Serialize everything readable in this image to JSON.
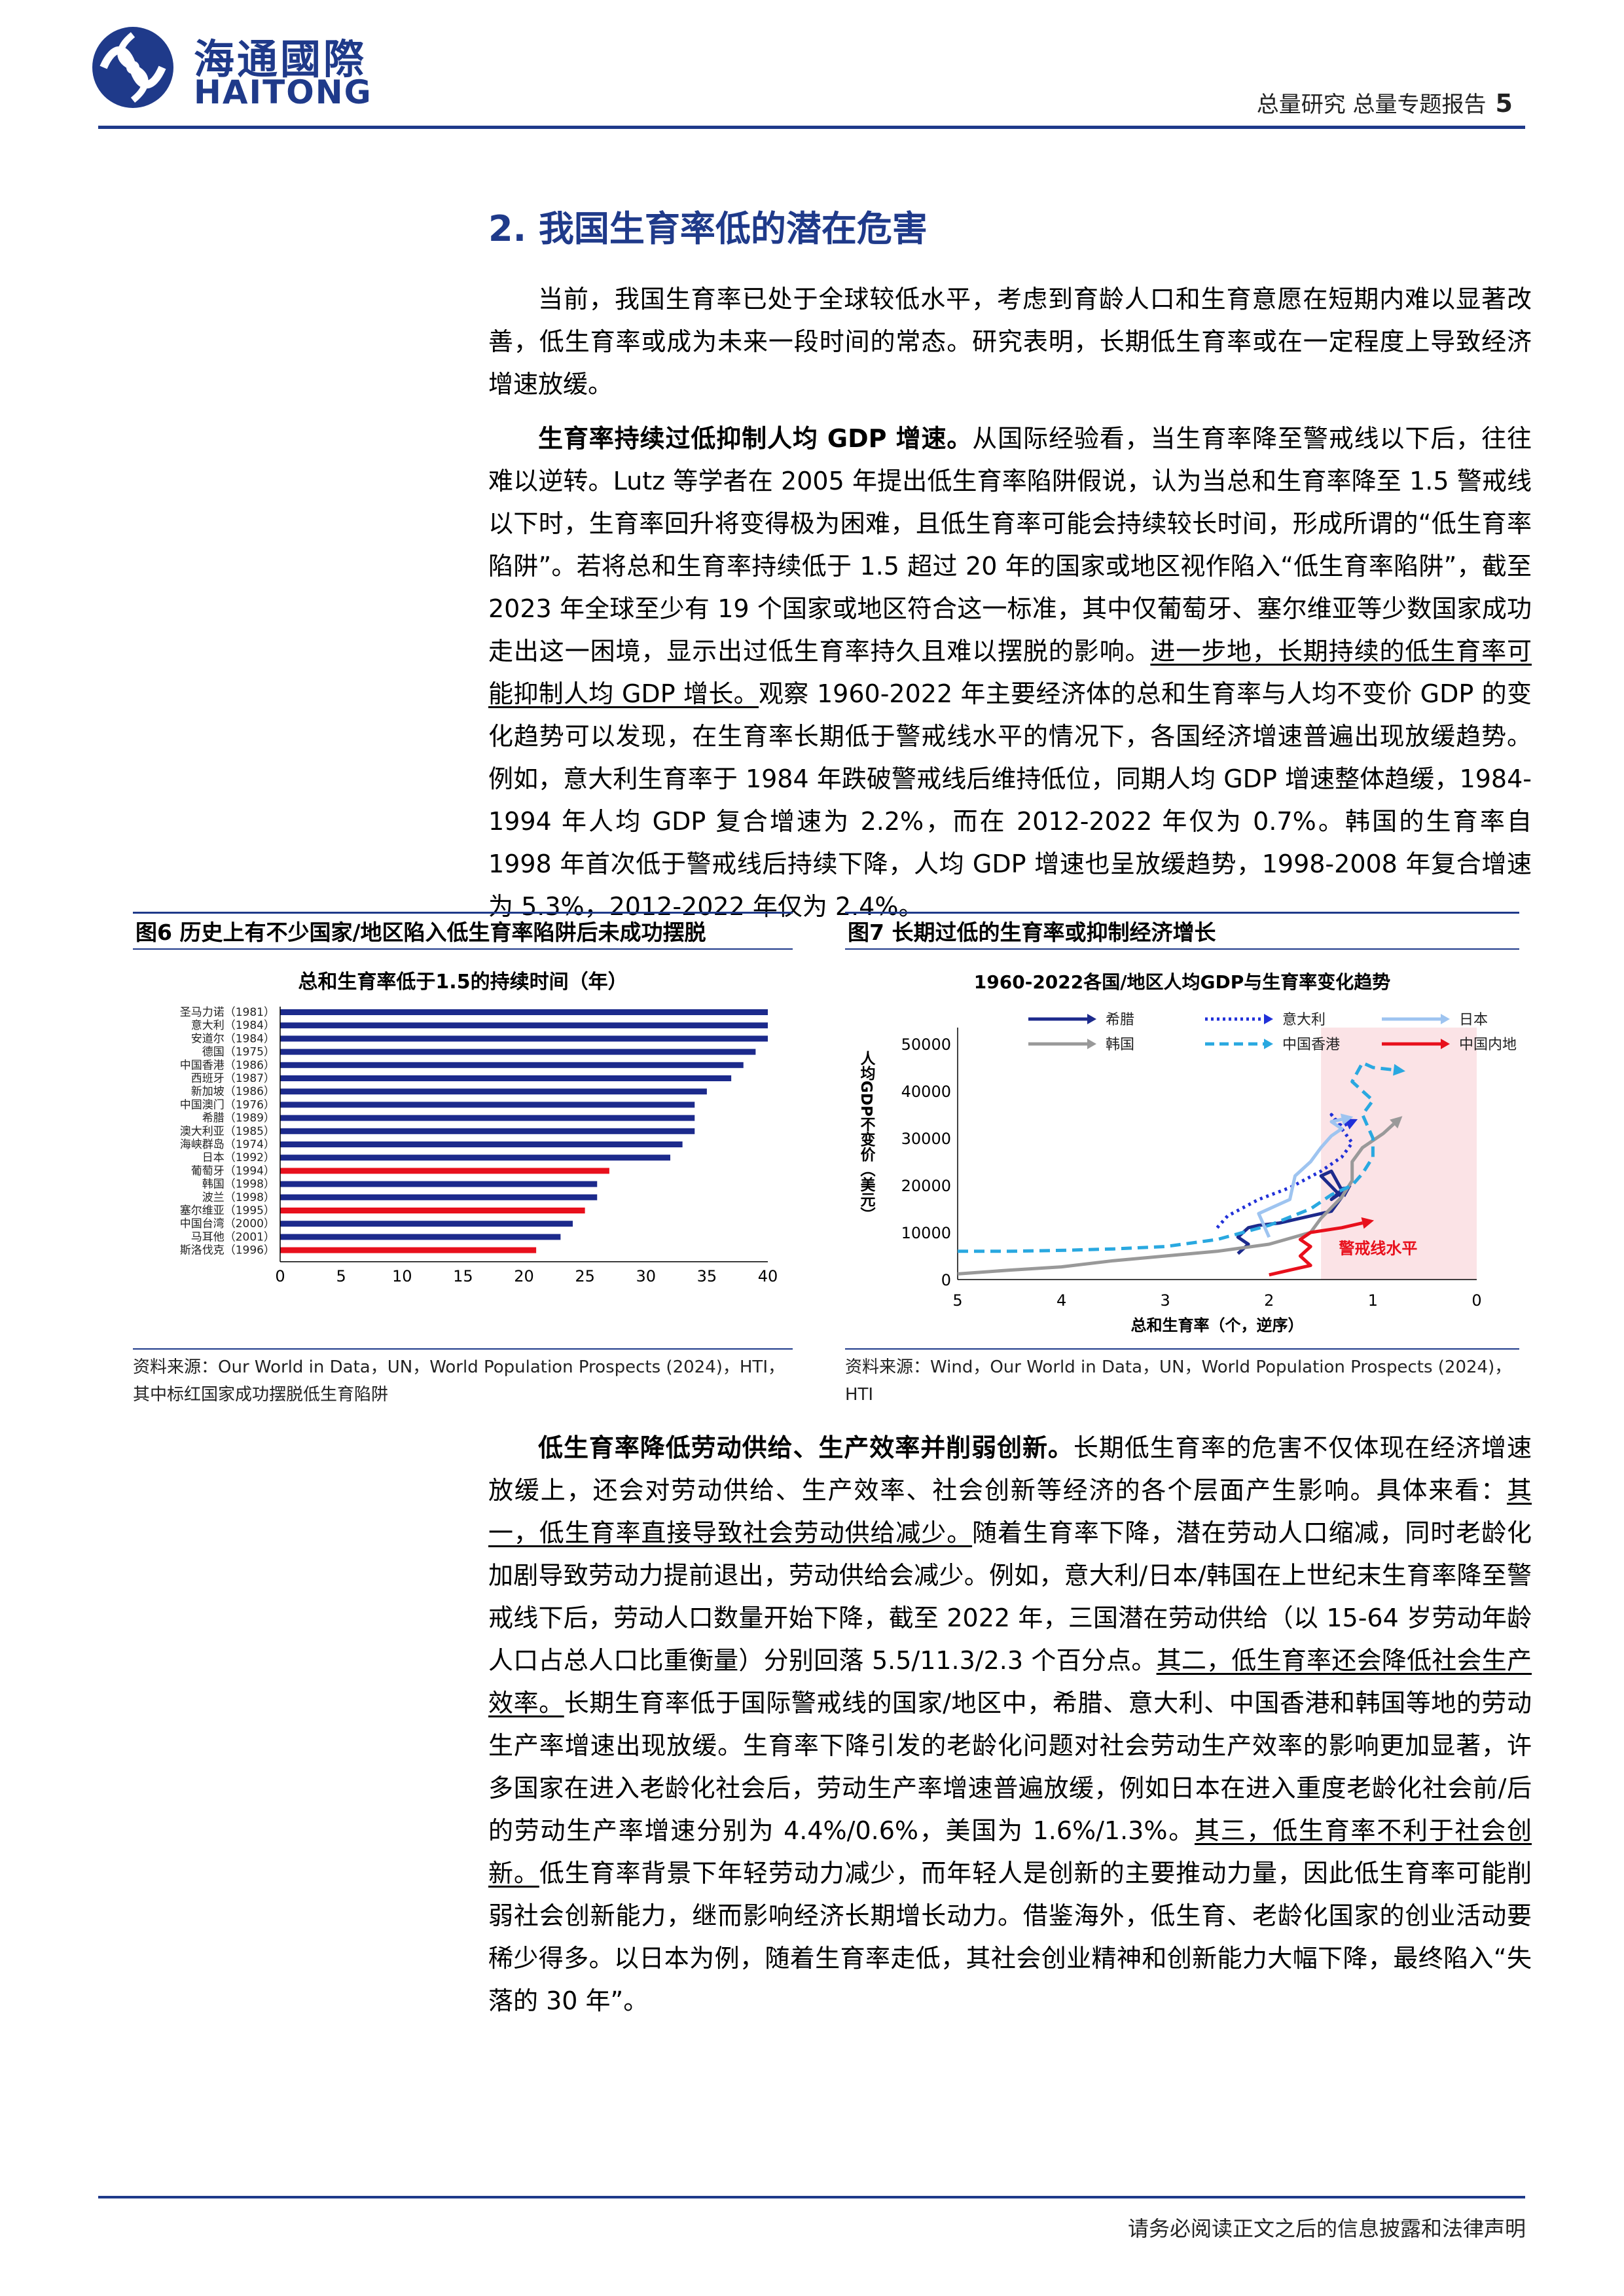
{
  "header": {
    "logo_cn": "海通國際",
    "logo_en": "HAITONG",
    "report_type": "总量研究  总量专题报告",
    "page_number": "5"
  },
  "section": {
    "title": "2. 我国生育率低的潜在危害"
  },
  "para1": {
    "text": "当前，我国生育率已处于全球较低水平，考虑到育龄人口和生育意愿在短期内难以显著改善，低生育率或成为未来一段时间的常态。研究表明，长期低生育率或在一定程度上导致经济增速放缓。"
  },
  "para2": {
    "lead": "生育率持续过低抑制人均 GDP 增速。",
    "text1": "从国际经验看，当生育率降至警戒线以下后，往往难以逆转。Lutz 等学者在 2005 年提出低生育率陷阱假说，认为当总和生育率降至 1.5 警戒线以下时，生育率回升将变得极为困难，且低生育率可能会持续较长时间，形成所谓的“低生育率陷阱”。若将总和生育率持续低于 1.5 超过 20 年的国家或地区视作陷入“低生育率陷阱”，截至 2023 年全球至少有 19 个国家或地区符合这一标准，其中仅葡萄牙、塞尔维亚等少数国家成功走出这一困境，显示出过低生育率持久且难以摆脱的影响。",
    "underline": "进一步地，长期持续的低生育率可能抑制人均 GDP 增长。",
    "text2": "观察 1960-2022 年主要经济体的总和生育率与人均不变价 GDP 的变化趋势可以发现，在生育率长期低于警戒线水平的情况下，各国经济增速普遍出现放缓趋势。例如，意大利生育率于 1984 年跌破警戒线后维持低位，同期人均 GDP 增速整体趋缓，1984-1994 年人均 GDP 复合增速为 2.2%，而在 2012-2022 年仅为 0.7%。韩国的生育率自 1998 年首次低于警戒线后持续下降，人均 GDP 增速也呈放缓趋势，1998-2008 年复合增速为 5.3%，2012-2022 年仅为 2.4%。"
  },
  "fig6": {
    "label": "图6  历史上有不少国家/地区陷入低生育率陷阱后未成功摆脱",
    "source": "资料来源：Our World in Data，UN，World Population Prospects (2024)，HTI，其中标红国家成功摆脱低生育陷阱"
  },
  "fig7": {
    "label": "图7  长期过低的生育率或抑制经济增长",
    "source": "资料来源：Wind，Our World in Data，UN，World Population Prospects (2024)，HTI"
  },
  "chart_data": [
    {
      "type": "bar",
      "orientation": "horizontal",
      "title": "总和生育率低于1.5的持续时间（年）",
      "categories": [
        "圣马力诺（1981）",
        "意大利（1984）",
        "安道尔（1984）",
        "德国（1975）",
        "中国香港（1986）",
        "西班牙（1987）",
        "新加坡（1986）",
        "中国澳门（1976）",
        "希腊（1989）",
        "澳大利亚（1985）",
        "海峡群岛（1974）",
        "日本（1992）",
        "葡萄牙（1994）",
        "韩国（1998）",
        "波兰（1998）",
        "塞尔维亚（1995）",
        "中国台湾（2000）",
        "马耳他（2001）",
        "斯洛伐克（1996）"
      ],
      "values": [
        40,
        40,
        40,
        39,
        38,
        37,
        35,
        34,
        34,
        34,
        33,
        32,
        27,
        26,
        26,
        25,
        24,
        23,
        21
      ],
      "highlighted": [
        false,
        false,
        false,
        false,
        false,
        false,
        false,
        false,
        false,
        false,
        false,
        false,
        true,
        false,
        false,
        true,
        false,
        false,
        true
      ],
      "colors": {
        "normal": "#1c2a8c",
        "highlight": "#e8101c"
      },
      "xlim": [
        0,
        40
      ],
      "xticks": [
        "0",
        "5",
        "10",
        "15",
        "20",
        "25",
        "30",
        "35",
        "40"
      ]
    },
    {
      "type": "line",
      "title": "1960-2022各国/地区人均GDP与生育率变化趋势",
      "xlabel": "总和生育率（个，逆序）",
      "ylabel": "人均GDP不变价（美元）",
      "xlim": [
        5,
        0
      ],
      "ylim": [
        0,
        50000
      ],
      "xticks": [
        "5",
        "4",
        "3",
        "2",
        "1",
        "0"
      ],
      "yticks": [
        "0",
        "10000",
        "20000",
        "30000",
        "40000",
        "50000"
      ],
      "annotation": "警戒线水平",
      "shaded_region_x": [
        1.5,
        0
      ],
      "series": [
        {
          "name": "希腊",
          "color": "#1c2a8c",
          "style": "solid",
          "points": [
            [
              2.3,
              5500
            ],
            [
              2.2,
              7500
            ],
            [
              2.3,
              9000
            ],
            [
              2.2,
              11000
            ],
            [
              2.1,
              11500
            ],
            [
              1.9,
              12000
            ],
            [
              1.6,
              13500
            ],
            [
              1.4,
              14500
            ],
            [
              1.3,
              17500
            ],
            [
              1.5,
              22000
            ],
            [
              1.4,
              23000
            ],
            [
              1.3,
              19000
            ],
            [
              1.4,
              17000
            ],
            [
              1.3,
              18500
            ]
          ]
        },
        {
          "name": "意大利",
          "color": "#2030d8",
          "style": "dotted",
          "points": [
            [
              2.5,
              11000
            ],
            [
              2.4,
              13500
            ],
            [
              2.1,
              17000
            ],
            [
              1.8,
              19500
            ],
            [
              1.5,
              23000
            ],
            [
              1.3,
              26000
            ],
            [
              1.2,
              29000
            ],
            [
              1.3,
              32000
            ],
            [
              1.4,
              35000
            ],
            [
              1.3,
              32500
            ],
            [
              1.25,
              33000
            ]
          ]
        },
        {
          "name": "日本",
          "color": "#9ec4f0",
          "style": "solid",
          "points": [
            [
              2.0,
              9000
            ],
            [
              2.1,
              14000
            ],
            [
              1.8,
              17000
            ],
            [
              1.75,
              22000
            ],
            [
              1.6,
              25000
            ],
            [
              1.5,
              28000
            ],
            [
              1.4,
              30500
            ],
            [
              1.3,
              32000
            ],
            [
              1.4,
              33500
            ],
            [
              1.3,
              34000
            ]
          ]
        },
        {
          "name": "韩国",
          "color": "#999999",
          "style": "solid",
          "points": [
            [
              5.0,
              1200
            ],
            [
              4.5,
              2000
            ],
            [
              4.0,
              2700
            ],
            [
              3.5,
              4000
            ],
            [
              3.0,
              5000
            ],
            [
              2.5,
              6000
            ],
            [
              2.0,
              7500
            ],
            [
              1.6,
              10000
            ],
            [
              1.5,
              13000
            ],
            [
              1.3,
              17500
            ],
            [
              1.2,
              21000
            ],
            [
              1.2,
              25000
            ],
            [
              1.1,
              28000
            ],
            [
              0.9,
              31000
            ],
            [
              0.8,
              33000
            ]
          ]
        },
        {
          "name": "中国香港",
          "color": "#29a8e0",
          "style": "dashed",
          "points": [
            [
              5.0,
              6000
            ],
            [
              4.5,
              6000
            ],
            [
              4.0,
              6200
            ],
            [
              3.5,
              6500
            ],
            [
              3.0,
              7000
            ],
            [
              2.5,
              8500
            ],
            [
              2.0,
              11500
            ],
            [
              1.6,
              15000
            ],
            [
              1.4,
              18000
            ],
            [
              1.2,
              20000
            ],
            [
              1.1,
              22500
            ],
            [
              1.0,
              26000
            ],
            [
              1.0,
              30000
            ],
            [
              1.1,
              35000
            ],
            [
              1.0,
              38000
            ],
            [
              1.2,
              42000
            ],
            [
              1.1,
              46000
            ],
            [
              1.0,
              45000
            ],
            [
              0.8,
              44500
            ]
          ]
        },
        {
          "name": "中国内地",
          "color": "#e8101c",
          "style": "solid",
          "points": [
            [
              2.0,
              1000
            ],
            [
              1.8,
              2000
            ],
            [
              1.6,
              3000
            ],
            [
              1.7,
              5000
            ],
            [
              1.6,
              7000
            ],
            [
              1.7,
              8500
            ],
            [
              1.6,
              10000
            ],
            [
              1.3,
              11000
            ],
            [
              1.1,
              12000
            ]
          ]
        }
      ]
    }
  ],
  "para3": {
    "lead": "低生育率降低劳动供给、生产效率并削弱创新。",
    "text1": "长期低生育率的危害不仅体现在经济增速放缓上，还会对劳动供给、生产效率、社会创新等经济的各个层面产生影响。具体来看：",
    "u1": "其一，低生育率直接导致社会劳动供给减少。",
    "text2": "随着生育率下降，潜在劳动人口缩减，同时老龄化加剧导致劳动力提前退出，劳动供给会减少。例如，意大利/日本/韩国在上世纪末生育率降至警戒线下后，劳动人口数量开始下降，截至 2022 年，三国潜在劳动供给（以 15-64 岁劳动年龄人口占总人口比重衡量）分别回落 5.5/11.3/2.3 个百分点。",
    "u2": "其二，低生育率还会降低社会生产效率。",
    "text3": "长期生育率低于国际警戒线的国家/地区中，希腊、意大利、中国香港和韩国等地的劳动生产率增速出现放缓。生育率下降引发的老龄化问题对社会劳动生产效率的影响更加显著，许多国家在进入老龄化社会后，劳动生产率增速普遍放缓，例如日本在进入重度老龄化社会前/后的劳动生产率增速分别为 4.4%/0.6%，美国为 1.6%/1.3%。",
    "u3": "其三，低生育率不利于社会创新。",
    "text4": "低生育率背景下年轻劳动力减少，而年轻人是创新的主要推动力量，因此低生育率可能削弱社会创新能力，继而影响经济长期增长动力。借鉴海外，低生育、老龄化国家的创业活动要稀少得多。以日本为例，随着生育率走低，其社会创业精神和创新能力大幅下降，最终陷入“失落的 30 年”。"
  },
  "footer": {
    "text": "请务必阅读正文之后的信息披露和法律声明"
  }
}
